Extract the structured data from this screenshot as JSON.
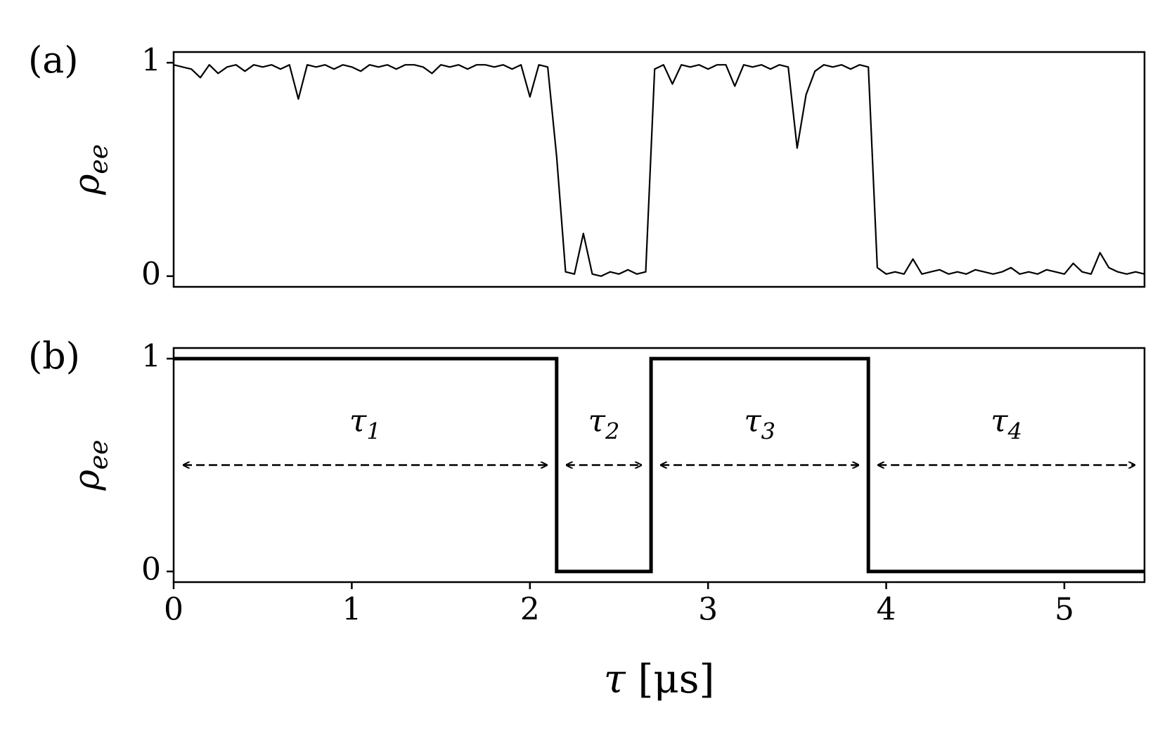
{
  "chart_data": [
    {
      "type": "line",
      "panel_label": "(a)",
      "ylabel": {
        "base": "ρ",
        "sub": "ee"
      },
      "color": "#000000",
      "xlim": [
        0,
        5.45
      ],
      "ylim": [
        -0.05,
        1.05
      ],
      "yticks": [
        0,
        1
      ],
      "x": [
        0,
        0.05,
        0.1,
        0.15,
        0.2,
        0.25,
        0.3,
        0.35,
        0.4,
        0.45,
        0.5,
        0.55,
        0.6,
        0.65,
        0.7,
        0.75,
        0.8,
        0.85,
        0.9,
        0.95,
        1,
        1.05,
        1.1,
        1.15,
        1.2,
        1.25,
        1.3,
        1.35,
        1.4,
        1.45,
        1.5,
        1.55,
        1.6,
        1.65,
        1.7,
        1.75,
        1.8,
        1.85,
        1.9,
        1.95,
        2,
        2.05,
        2.1,
        2.15,
        2.2,
        2.25,
        2.3,
        2.35,
        2.4,
        2.45,
        2.5,
        2.55,
        2.6,
        2.65,
        2.7,
        2.75,
        2.8,
        2.85,
        2.9,
        2.95,
        3,
        3.05,
        3.1,
        3.15,
        3.2,
        3.25,
        3.3,
        3.35,
        3.4,
        3.45,
        3.5,
        3.55,
        3.6,
        3.65,
        3.7,
        3.75,
        3.8,
        3.85,
        3.9,
        3.95,
        4,
        4.05,
        4.1,
        4.15,
        4.2,
        4.25,
        4.3,
        4.35,
        4.4,
        4.45,
        4.5,
        4.55,
        4.6,
        4.65,
        4.7,
        4.75,
        4.8,
        4.85,
        4.9,
        4.95,
        5,
        5.05,
        5.1,
        5.15,
        5.2,
        5.25,
        5.3,
        5.35,
        5.4,
        5.45
      ],
      "values": [
        0.99,
        0.98,
        0.97,
        0.93,
        0.99,
        0.95,
        0.98,
        0.99,
        0.96,
        0.99,
        0.98,
        0.99,
        0.97,
        0.99,
        0.83,
        0.99,
        0.98,
        0.99,
        0.97,
        0.99,
        0.98,
        0.96,
        0.99,
        0.98,
        0.99,
        0.97,
        0.99,
        0.99,
        0.98,
        0.95,
        0.99,
        0.98,
        0.99,
        0.97,
        0.99,
        0.99,
        0.98,
        0.99,
        0.97,
        0.99,
        0.84,
        0.99,
        0.98,
        0.56,
        0.02,
        0.01,
        0.2,
        0.01,
        0,
        0.02,
        0.01,
        0.03,
        0.01,
        0.02,
        0.97,
        0.99,
        0.9,
        0.99,
        0.98,
        0.99,
        0.97,
        0.99,
        0.99,
        0.89,
        0.99,
        0.98,
        0.99,
        0.97,
        0.99,
        0.98,
        0.6,
        0.85,
        0.96,
        0.99,
        0.98,
        0.99,
        0.97,
        0.99,
        0.98,
        0.04,
        0.01,
        0.02,
        0.01,
        0.08,
        0.01,
        0.02,
        0.03,
        0.01,
        0.02,
        0.01,
        0.03,
        0.02,
        0.01,
        0.02,
        0.04,
        0.01,
        0.02,
        0.01,
        0.03,
        0.02,
        0.01,
        0.06,
        0.02,
        0.01,
        0.11,
        0.04,
        0.02,
        0.01,
        0.02,
        0.01
      ]
    },
    {
      "type": "step",
      "panel_label": "(b)",
      "ylabel": {
        "base": "ρ",
        "sub": "ee"
      },
      "xlabel": {
        "symbol": "τ",
        "unit": "[μs]"
      },
      "color": "#000000",
      "xlim": [
        0,
        5.45
      ],
      "ylim": [
        -0.05,
        1.05
      ],
      "yticks": [
        0,
        1
      ],
      "xticks": [
        0,
        1,
        2,
        3,
        4,
        5
      ],
      "x": [
        0,
        2.15,
        2.15,
        2.68,
        2.68,
        3.9,
        3.9,
        5.45
      ],
      "values": [
        1,
        1,
        0,
        0,
        1,
        1,
        0,
        0
      ],
      "intervals": [
        {
          "label": {
            "base": "τ",
            "sub": "1"
          },
          "start": 0,
          "end": 2.15
        },
        {
          "label": {
            "base": "τ",
            "sub": "2"
          },
          "start": 2.15,
          "end": 2.68
        },
        {
          "label": {
            "base": "τ",
            "sub": "3"
          },
          "start": 2.68,
          "end": 3.9
        },
        {
          "label": {
            "base": "τ",
            "sub": "4"
          },
          "start": 3.9,
          "end": 5.45
        }
      ]
    }
  ]
}
